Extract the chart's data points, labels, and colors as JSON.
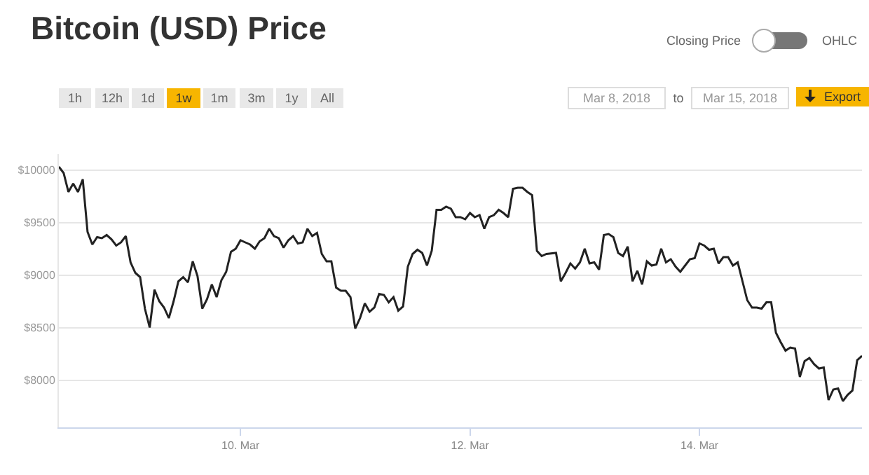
{
  "chart_data": {
    "type": "line",
    "title": "Bitcoin (USD) Price",
    "x": [
      "2018-03-08T10:00",
      "2018-03-08T11:00",
      "2018-03-08T12:00",
      "2018-03-08T13:00",
      "2018-03-08T14:00",
      "2018-03-08T15:00",
      "2018-03-08T16:00",
      "2018-03-08T17:00",
      "2018-03-08T18:00",
      "2018-03-08T19:00",
      "2018-03-08T20:00",
      "2018-03-08T21:00",
      "2018-03-08T22:00",
      "2018-03-08T23:00",
      "2018-03-09T00:00",
      "2018-03-09T01:00",
      "2018-03-09T02:00",
      "2018-03-09T03:00",
      "2018-03-09T04:00",
      "2018-03-09T05:00",
      "2018-03-09T06:00",
      "2018-03-09T07:00",
      "2018-03-09T08:00",
      "2018-03-09T09:00",
      "2018-03-09T10:00",
      "2018-03-09T11:00",
      "2018-03-09T12:00",
      "2018-03-09T13:00",
      "2018-03-09T14:00",
      "2018-03-09T15:00",
      "2018-03-09T16:00",
      "2018-03-09T17:00",
      "2018-03-09T18:00",
      "2018-03-09T19:00",
      "2018-03-09T20:00",
      "2018-03-09T21:00",
      "2018-03-09T22:00",
      "2018-03-09T23:00",
      "2018-03-10T00:00",
      "2018-03-10T01:00",
      "2018-03-10T02:00",
      "2018-03-10T03:00",
      "2018-03-10T04:00",
      "2018-03-10T05:00",
      "2018-03-10T06:00",
      "2018-03-10T07:00",
      "2018-03-10T08:00",
      "2018-03-10T09:00",
      "2018-03-10T10:00",
      "2018-03-10T11:00",
      "2018-03-10T12:00",
      "2018-03-10T13:00",
      "2018-03-10T14:00",
      "2018-03-10T15:00",
      "2018-03-10T16:00",
      "2018-03-10T17:00",
      "2018-03-10T18:00",
      "2018-03-10T19:00",
      "2018-03-10T20:00",
      "2018-03-10T21:00",
      "2018-03-10T22:00",
      "2018-03-10T23:00",
      "2018-03-11T00:00",
      "2018-03-11T01:00",
      "2018-03-11T02:00",
      "2018-03-11T03:00",
      "2018-03-11T04:00",
      "2018-03-11T05:00",
      "2018-03-11T06:00",
      "2018-03-11T07:00",
      "2018-03-11T08:00",
      "2018-03-11T09:00",
      "2018-03-11T10:00",
      "2018-03-11T11:00",
      "2018-03-11T12:00",
      "2018-03-11T13:00",
      "2018-03-11T14:00",
      "2018-03-11T15:00",
      "2018-03-11T16:00",
      "2018-03-11T17:00",
      "2018-03-11T18:00",
      "2018-03-11T19:00",
      "2018-03-11T20:00",
      "2018-03-11T21:00",
      "2018-03-11T22:00",
      "2018-03-11T23:00",
      "2018-03-12T00:00",
      "2018-03-12T01:00",
      "2018-03-12T02:00",
      "2018-03-12T03:00",
      "2018-03-12T04:00",
      "2018-03-12T05:00",
      "2018-03-12T06:00",
      "2018-03-12T07:00",
      "2018-03-12T08:00",
      "2018-03-12T09:00",
      "2018-03-12T10:00",
      "2018-03-12T11:00",
      "2018-03-12T12:00",
      "2018-03-12T13:00",
      "2018-03-12T14:00",
      "2018-03-12T15:00",
      "2018-03-12T16:00",
      "2018-03-12T18:00",
      "2018-03-12T19:00",
      "2018-03-12T20:00",
      "2018-03-12T21:00",
      "2018-03-12T22:00",
      "2018-03-12T23:00",
      "2018-03-13T00:00",
      "2018-03-13T01:00",
      "2018-03-13T02:00",
      "2018-03-13T03:00",
      "2018-03-13T04:00",
      "2018-03-13T05:00",
      "2018-03-13T06:00",
      "2018-03-13T07:00",
      "2018-03-13T08:00",
      "2018-03-13T09:00",
      "2018-03-13T10:00",
      "2018-03-13T11:00",
      "2018-03-13T12:00",
      "2018-03-13T13:00",
      "2018-03-13T14:00",
      "2018-03-13T15:00",
      "2018-03-13T16:00",
      "2018-03-13T17:00",
      "2018-03-13T18:00",
      "2018-03-13T19:00",
      "2018-03-13T20:00",
      "2018-03-13T21:00",
      "2018-03-13T22:00",
      "2018-03-13T23:00",
      "2018-03-14T00:00",
      "2018-03-14T01:00",
      "2018-03-14T02:00",
      "2018-03-14T03:00",
      "2018-03-14T04:00",
      "2018-03-14T05:00",
      "2018-03-14T06:00",
      "2018-03-14T07:00",
      "2018-03-14T08:00",
      "2018-03-14T09:00",
      "2018-03-14T10:00",
      "2018-03-14T11:00",
      "2018-03-14T12:00",
      "2018-03-14T13:00",
      "2018-03-14T14:00",
      "2018-03-14T15:00",
      "2018-03-14T16:00",
      "2018-03-14T17:00",
      "2018-03-14T18:00",
      "2018-03-14T19:00",
      "2018-03-14T20:00",
      "2018-03-14T21:00",
      "2018-03-14T22:00",
      "2018-03-14T23:00",
      "2018-03-15T00:00",
      "2018-03-15T01:00",
      "2018-03-15T02:00",
      "2018-03-15T03:00",
      "2018-03-15T04:00",
      "2018-03-15T05:00",
      "2018-03-15T06:00",
      "2018-03-15T07:00",
      "2018-03-15T08:00",
      "2018-03-15T09:00",
      "2018-03-15T10:00"
    ],
    "series": [
      {
        "color": "#222222",
        "values": [
          10030,
          9970,
          9790,
          9870,
          9790,
          9910,
          9410,
          9290,
          9360,
          9350,
          9380,
          9340,
          9280,
          9310,
          9370,
          9120,
          9020,
          8980,
          8680,
          8500,
          8860,
          8750,
          8690,
          8590,
          8750,
          8940,
          8980,
          8930,
          9130,
          8990,
          8680,
          8770,
          8910,
          8790,
          8950,
          9030,
          9220,
          9250,
          9330,
          9310,
          9290,
          9250,
          9320,
          9350,
          9440,
          9370,
          9350,
          9260,
          9330,
          9370,
          9300,
          9310,
          9440,
          9370,
          9400,
          9200,
          9130,
          9130,
          8880,
          8850,
          8850,
          8790,
          8490,
          8590,
          8730,
          8650,
          8690,
          8820,
          8810,
          8740,
          8790,
          8660,
          8700,
          9080,
          9200,
          9240,
          9210,
          9090,
          9230,
          9620,
          9620,
          9650,
          9630,
          9550,
          9550,
          9530,
          9590,
          9550,
          9570,
          9440,
          9550,
          9570,
          9620,
          9590,
          9550,
          9820,
          9830,
          9830,
          9790,
          9760,
          9230,
          9180,
          9200,
          9210,
          8940,
          9020,
          9110,
          9060,
          9120,
          9250,
          9110,
          9120,
          9050,
          9380,
          9390,
          9360,
          9210,
          9180,
          9270,
          8940,
          9040,
          8910,
          9130,
          9090,
          9100,
          9250,
          9120,
          9150,
          9080,
          9030,
          9090,
          9150,
          9160,
          9300,
          9280,
          9240,
          9250,
          9110,
          9170,
          9170,
          9090,
          9120,
          8940,
          8760,
          8690,
          8690,
          8680,
          8740,
          8740,
          8450,
          8360,
          8280,
          8310,
          8300,
          8030,
          8180,
          8210,
          8150,
          8110,
          8120,
          7810,
          7910,
          7920,
          7800,
          7860,
          7900,
          8190,
          8230
        ]
      }
    ],
    "xlim": [
      "2018-03-08T10:00",
      "2018-03-15T10:00"
    ],
    "ylim": [
      7550,
      10150
    ],
    "xticks": [
      {
        "value": "2018-03-10",
        "label": "10. Mar"
      },
      {
        "value": "2018-03-12",
        "label": "12. Mar"
      },
      {
        "value": "2018-03-14",
        "label": "14. Mar"
      }
    ],
    "yticks": [
      {
        "value": 8000,
        "label": "$8000"
      },
      {
        "value": 8500,
        "label": "$8500"
      },
      {
        "value": 9000,
        "label": "$9000"
      },
      {
        "value": 9500,
        "label": "$9500"
      },
      {
        "value": 10000,
        "label": "$10000"
      }
    ],
    "grid": "y",
    "marker": "none",
    "line_style": "solid",
    "annotations": [
      "1h",
      "12h",
      "1d",
      "1w",
      "1m",
      "3m",
      "1y",
      "All",
      "Closing Price",
      "OHLC",
      "Mar 8, 2018",
      "to",
      "Mar 15, 2018",
      "Export"
    ]
  }
}
